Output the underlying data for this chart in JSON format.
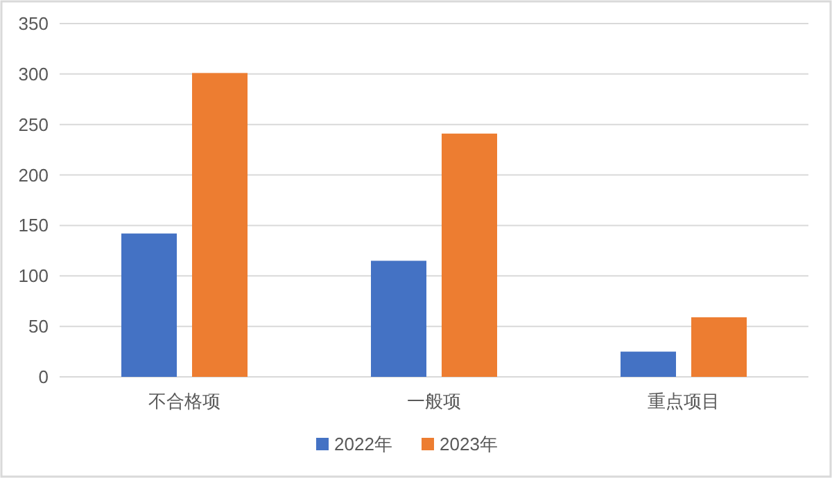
{
  "chart_data": {
    "type": "bar",
    "categories": [
      "不合格项",
      "一般项",
      "重点项目"
    ],
    "series": [
      {
        "name": "2022年",
        "color": "#4472c4",
        "values": [
          142,
          115,
          25
        ]
      },
      {
        "name": "2023年",
        "color": "#ed7d31",
        "values": [
          301,
          241,
          59
        ]
      }
    ],
    "ylim": [
      0,
      350
    ],
    "yticks": [
      0,
      50,
      100,
      150,
      200,
      250,
      300,
      350
    ],
    "grid": "y",
    "legend": "bottom"
  }
}
